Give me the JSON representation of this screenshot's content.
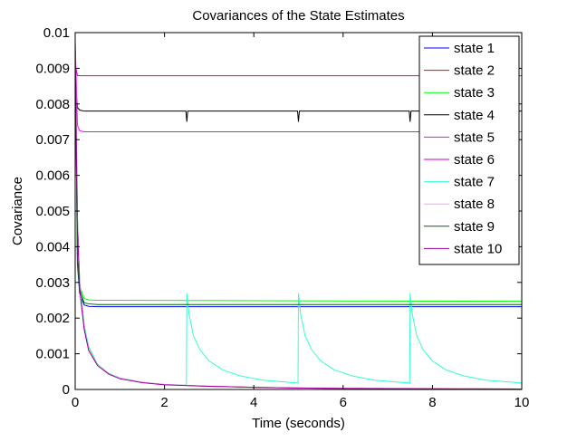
{
  "chart_data": {
    "type": "line",
    "title": "Covariances of the State Estimates",
    "xlabel": "Time (seconds)",
    "ylabel": "Covariance",
    "xlim": [
      0,
      10
    ],
    "ylim": [
      0,
      0.01
    ],
    "xticks": [
      0,
      2,
      4,
      6,
      8,
      10
    ],
    "xtick_labels": [
      "0",
      "2",
      "4",
      "6",
      "8",
      "10"
    ],
    "yticks": [
      0,
      0.001,
      0.002,
      0.003,
      0.004,
      0.005,
      0.006,
      0.007,
      0.008,
      0.009,
      0.01
    ],
    "ytick_labels": [
      "0",
      "0.001",
      "0.002",
      "0.003",
      "0.004",
      "0.005",
      "0.006",
      "0.007",
      "0.008",
      "0.009",
      "0.01"
    ],
    "grid": false,
    "legend_position": "top-right",
    "series": [
      {
        "name": "state 1",
        "color": "#0000ff",
        "x": [
          0,
          0.05,
          0.1,
          0.2,
          0.3,
          0.5,
          10
        ],
        "y": [
          0.0095,
          0.0035,
          0.0027,
          0.00237,
          0.00233,
          0.00232,
          0.00232
        ]
      },
      {
        "name": "state 2",
        "color": "#ff0000",
        "x": [
          0,
          0.05,
          0.1,
          0.2,
          0.3,
          0.5,
          0.75,
          1,
          1.5,
          2,
          3,
          4,
          5,
          6,
          7,
          8,
          9,
          10
        ],
        "y": [
          0.0095,
          0.0048,
          0.003,
          0.0018,
          0.0012,
          0.0007,
          0.00045,
          0.00032,
          0.0002,
          0.00014,
          9e-05,
          6e-05,
          4e-05,
          3e-05,
          2.5e-05,
          2e-05,
          1.5e-05,
          1.2e-05
        ]
      },
      {
        "name": "state 3",
        "color": "#00ff00",
        "x": [
          0,
          0.05,
          0.1,
          0.2,
          0.3,
          0.5,
          10
        ],
        "y": [
          0.0095,
          0.0037,
          0.0029,
          0.00255,
          0.00251,
          0.0025,
          0.00247
        ]
      },
      {
        "name": "state 4",
        "color": "#000000",
        "x": [
          0,
          0.05,
          0.1,
          0.2,
          2.48,
          2.5,
          2.52,
          4.98,
          5.0,
          5.02,
          7.48,
          7.5,
          7.52,
          10
        ],
        "y": [
          0.0086,
          0.0079,
          0.00783,
          0.0078,
          0.0078,
          0.0075,
          0.0078,
          0.0078,
          0.0075,
          0.0078,
          0.0078,
          0.0075,
          0.0078,
          0.0078
        ]
      },
      {
        "name": "state 5",
        "color": "#ff00ff",
        "x": [
          0,
          0.05,
          0.1,
          0.2,
          10
        ],
        "y": [
          0.0098,
          0.0074,
          0.00725,
          0.00722,
          0.00722
        ]
      },
      {
        "name": "state 6",
        "color": "#cc00cc",
        "x": [
          0,
          0.05,
          0.1,
          10
        ],
        "y": [
          0.0091,
          0.0088,
          0.00879,
          0.00879
        ]
      },
      {
        "name": "state 7",
        "color": "#33ffcc",
        "x": [
          0,
          0.05,
          0.1,
          0.2,
          0.3,
          0.5,
          0.75,
          1,
          1.5,
          2,
          2.49,
          2.5,
          2.55,
          2.65,
          2.8,
          3.0,
          3.3,
          3.7,
          4.2,
          4.99,
          5.0,
          5.05,
          5.15,
          5.3,
          5.5,
          5.8,
          6.2,
          6.7,
          7.49,
          7.5,
          7.55,
          7.65,
          7.8,
          8.0,
          8.3,
          8.7,
          9.2,
          10
        ],
        "y": [
          0.0095,
          0.0048,
          0.003,
          0.0018,
          0.0012,
          0.0007,
          0.00045,
          0.00032,
          0.0002,
          0.00014,
          0.00012,
          0.0027,
          0.0021,
          0.0015,
          0.0011,
          0.0008,
          0.00055,
          0.00038,
          0.00026,
          0.00018,
          0.0027,
          0.0021,
          0.0015,
          0.0011,
          0.0008,
          0.00055,
          0.00038,
          0.00026,
          0.00018,
          0.0027,
          0.0021,
          0.0015,
          0.0011,
          0.0008,
          0.00055,
          0.00038,
          0.00026,
          0.00018
        ]
      },
      {
        "name": "state 8",
        "color": "#ff99ff",
        "x": [
          0,
          0.05,
          0.1,
          0.2,
          0.3,
          0.5,
          0.75,
          1,
          1.5,
          2,
          3,
          4,
          5,
          6,
          7,
          8,
          9,
          10
        ],
        "y": [
          0.0095,
          0.0047,
          0.0029,
          0.0017,
          0.0011,
          0.00068,
          0.00044,
          0.00031,
          0.0002,
          0.00014,
          9e-05,
          6e-05,
          4e-05,
          3e-05,
          2.5e-05,
          2e-05,
          1.5e-05,
          1.2e-05
        ]
      },
      {
        "name": "state 9",
        "color": "#006600",
        "x": [
          0,
          0.05,
          0.1,
          0.2,
          0.3,
          0.5,
          10
        ],
        "y": [
          0.0095,
          0.0036,
          0.0028,
          0.00243,
          0.0024,
          0.00238,
          0.00238
        ]
      },
      {
        "name": "state 10",
        "color": "#990099",
        "x": [
          0,
          0.05,
          0.1,
          0.2,
          0.3,
          0.5,
          0.75,
          1,
          1.5,
          2,
          3,
          4,
          5,
          6,
          7,
          8,
          9,
          10
        ],
        "y": [
          0.0094,
          0.0046,
          0.0028,
          0.0017,
          0.0011,
          0.00067,
          0.00043,
          0.0003,
          0.00019,
          0.00013,
          9e-05,
          6e-05,
          4e-05,
          3e-05,
          2.5e-05,
          2e-05,
          1.5e-05,
          1.2e-05
        ]
      }
    ]
  }
}
